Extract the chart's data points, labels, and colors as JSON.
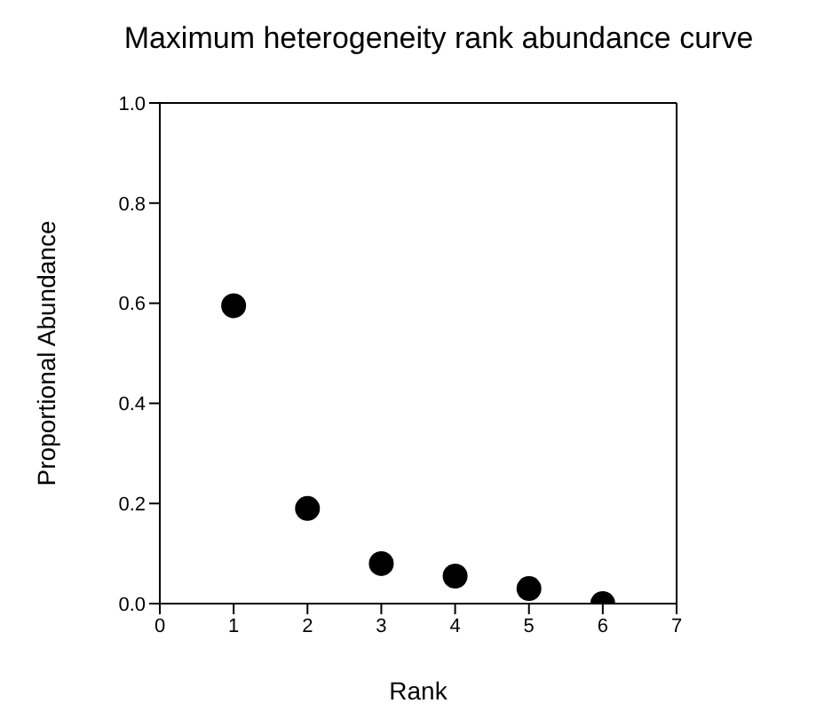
{
  "chart_data": {
    "type": "scatter",
    "title": "Maximum heterogeneity rank abundance curve",
    "xlabel": "Rank",
    "ylabel": "Proportional Abundance",
    "x": [
      1,
      2,
      3,
      4,
      5,
      6
    ],
    "series": [
      {
        "color": "#000000",
        "values": [
          0.595,
          0.19,
          0.08,
          0.055,
          0.03,
          0
        ]
      }
    ],
    "xlim": [
      0,
      7
    ],
    "xticks": [
      0,
      1,
      2,
      3,
      4,
      5,
      6,
      7
    ],
    "ylim": [
      0,
      1
    ],
    "yticks": [
      {
        "value": 0,
        "label": "0.0"
      },
      {
        "value": 0.2,
        "label": "0.2"
      },
      {
        "value": 0.4,
        "label": "0.4"
      },
      {
        "value": 0.6,
        "label": "0.6"
      },
      {
        "value": 0.8,
        "label": "0.8"
      },
      {
        "value": 1,
        "label": "1.0"
      }
    ],
    "marker": "circle"
  }
}
